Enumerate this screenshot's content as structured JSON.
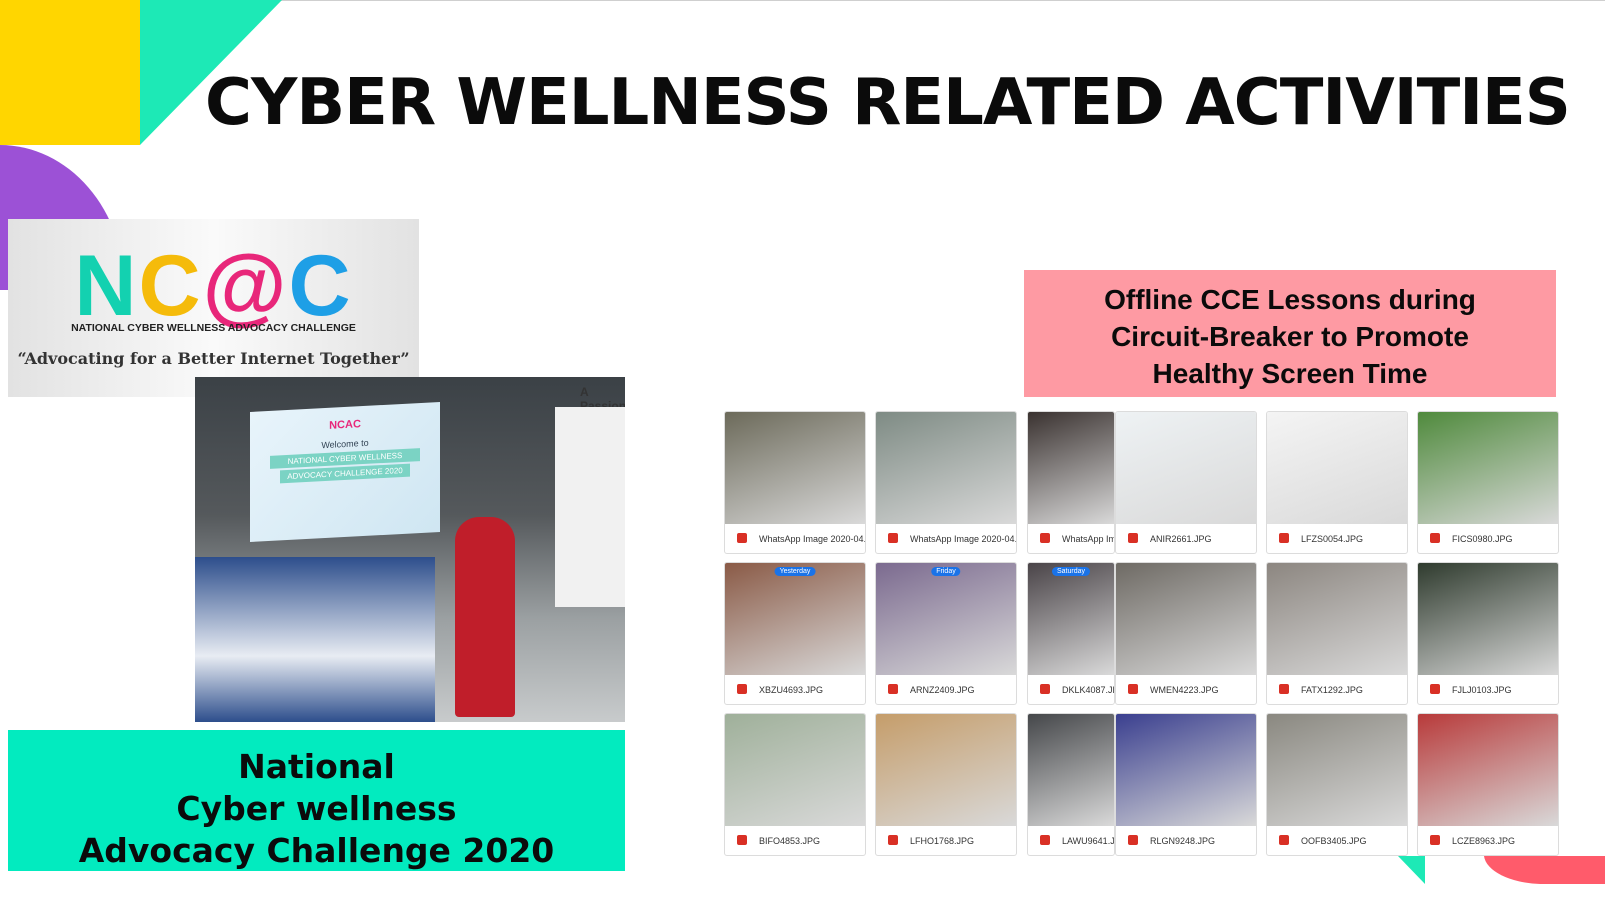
{
  "slide": {
    "title": "CYBER WELLNESS RELATED ACTIVITIES",
    "logo": {
      "letters": [
        "N",
        "C",
        "@",
        "C"
      ],
      "name": "NATIONAL CYBER WELLNESS ADVOCACY CHALLENGE",
      "tagline": "“Advocating for a Better Internet Together”"
    },
    "photo": {
      "screen_logo": "NCAC",
      "screen_lines": [
        "Welcome to",
        "NATIONAL CYBER WELLNESS",
        "ADVOCACY CHALLENGE 2020"
      ],
      "wall_sign": "A Passiona"
    },
    "caption": [
      "National",
      "Cyber wellness",
      "Advocacy Challenge 2020"
    ],
    "lessons_heading": [
      "Offline CCE Lessons during",
      "Circuit-Breaker to Promote",
      "Healthy Screen Time"
    ],
    "thumbnails": [
      [
        {
          "file": "WhatsApp Image 2020-04..."
        },
        {
          "file": "WhatsApp Image 2020-04..."
        },
        {
          "file": "WhatsApp Ima"
        },
        {
          "file": "ANIR2661.JPG"
        },
        {
          "file": "LFZS0054.JPG"
        },
        {
          "file": "FICS0980.JPG"
        }
      ],
      [
        {
          "file": "XBZU4693.JPG",
          "tag": "Yesterday"
        },
        {
          "file": "ARNZ2409.JPG",
          "tag": "Friday"
        },
        {
          "file": "DKLK4087.JP",
          "tag": "Saturday"
        },
        {
          "file": "WMEN4223.JPG"
        },
        {
          "file": "FATX1292.JPG"
        },
        {
          "file": "FJLJ0103.JPG"
        }
      ],
      [
        {
          "file": "BIFO4853.JPG"
        },
        {
          "file": "LFHO1768.JPG"
        },
        {
          "file": "LAWU9641.JP"
        },
        {
          "file": "RLGN9248.JPG"
        },
        {
          "file": "OOFB3405.JPG"
        },
        {
          "file": "LCZE8963.JPG"
        }
      ]
    ]
  }
}
